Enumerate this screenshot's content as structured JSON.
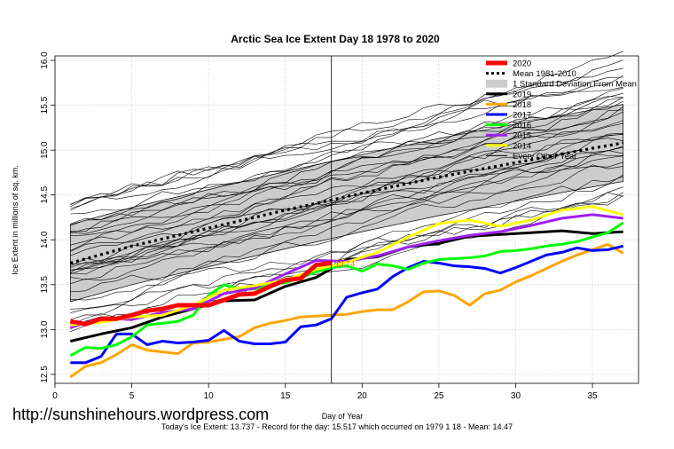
{
  "chart_data": {
    "type": "line",
    "title": "Arctic Sea Ice Extent Day 18 1978 to 2020",
    "xlabel": "Day of Year",
    "ylabel": "Ice Extent in millions of sq. km.",
    "xlim": [
      0,
      38
    ],
    "ylim": [
      12.4,
      16.05
    ],
    "x_ticks": [
      0,
      5,
      10,
      15,
      20,
      25,
      30,
      35
    ],
    "y_ticks": [
      12.5,
      13.0,
      13.5,
      14.0,
      14.5,
      15.0,
      15.5,
      16.0
    ],
    "grid": true,
    "legend_position": "top-right",
    "marker_day": 18,
    "end_label": "13.74",
    "legend": [
      {
        "label": "2020",
        "color": "#ff0000",
        "style": "solid",
        "width": 5
      },
      {
        "label": "Mean 1981-2010",
        "color": "#000000",
        "style": "dotted",
        "width": 3
      },
      {
        "label": "1 Standard Deviation From Mean",
        "color": "#cccccc",
        "style": "band",
        "width": 9
      },
      {
        "label": "2019",
        "color": "#000000",
        "style": "solid",
        "width": 3
      },
      {
        "label": "2018",
        "color": "#ffa500",
        "style": "solid",
        "width": 3
      },
      {
        "label": "2017",
        "color": "#0000ff",
        "style": "solid",
        "width": 3
      },
      {
        "label": "2016",
        "color": "#00ff00",
        "style": "solid",
        "width": 3
      },
      {
        "label": "2015",
        "color": "#a020f0",
        "style": "solid",
        "width": 3
      },
      {
        "label": "2014",
        "color": "#ffff00",
        "style": "solid",
        "width": 3
      },
      {
        "label": "Every Other Year",
        "color": "#000000",
        "style": "solid",
        "width": 1
      }
    ],
    "mean": {
      "x": [
        1,
        5,
        10,
        15,
        20,
        25,
        30,
        35,
        37
      ],
      "y": [
        13.74,
        13.93,
        14.13,
        14.33,
        14.52,
        14.7,
        14.86,
        15.02,
        15.08
      ]
    },
    "std_band": {
      "x": [
        1,
        5,
        10,
        15,
        20,
        25,
        30,
        35,
        37
      ],
      "upper": [
        14.17,
        14.36,
        14.56,
        14.76,
        14.95,
        15.13,
        15.29,
        15.45,
        15.51
      ],
      "lower": [
        13.31,
        13.5,
        13.7,
        13.9,
        14.09,
        14.27,
        14.43,
        14.59,
        14.65
      ]
    },
    "series": [
      {
        "name": "2020",
        "color": "#ff0000",
        "width": 5,
        "x": [
          1,
          2,
          3,
          4,
          5,
          6,
          7,
          8,
          9,
          10,
          11,
          12,
          13,
          14,
          15,
          16,
          17,
          18
        ],
        "y": [
          13.09,
          13.06,
          13.12,
          13.12,
          13.16,
          13.21,
          13.23,
          13.27,
          13.27,
          13.27,
          13.33,
          13.39,
          13.4,
          13.48,
          13.55,
          13.57,
          13.72,
          13.74
        ]
      },
      {
        "name": "2014",
        "color": "#ffff00",
        "width": 3,
        "x": [
          1,
          3,
          5,
          7,
          9,
          11,
          13,
          15,
          17,
          19,
          21,
          23,
          25,
          27,
          29,
          31,
          33,
          35,
          37
        ],
        "y": [
          13.05,
          13.08,
          13.14,
          13.16,
          13.27,
          13.44,
          13.49,
          13.55,
          13.67,
          13.75,
          13.86,
          14.03,
          14.18,
          14.22,
          14.15,
          14.22,
          14.33,
          14.37,
          14.28
        ]
      },
      {
        "name": "2015",
        "color": "#a020f0",
        "width": 3,
        "x": [
          1,
          3,
          5,
          7,
          9,
          11,
          13,
          15,
          17,
          19,
          21,
          23,
          25,
          27,
          29,
          31,
          33,
          35,
          37
        ],
        "y": [
          13.02,
          13.13,
          13.11,
          13.19,
          13.23,
          13.4,
          13.46,
          13.62,
          13.77,
          13.76,
          13.82,
          13.92,
          13.99,
          14.05,
          14.09,
          14.16,
          14.24,
          14.28,
          14.24
        ]
      },
      {
        "name": "2016",
        "color": "#00ff00",
        "width": 3,
        "x": [
          1,
          2,
          3,
          4,
          5,
          6,
          7,
          8,
          9,
          10,
          11,
          12,
          13,
          14,
          15,
          16,
          17,
          18,
          19,
          20,
          21,
          22,
          23,
          24,
          25,
          26,
          27,
          28,
          29,
          30,
          31,
          32,
          33,
          34,
          35,
          36,
          37
        ],
        "y": [
          12.71,
          12.8,
          12.79,
          12.83,
          12.92,
          13.05,
          13.07,
          13.09,
          13.16,
          13.38,
          13.5,
          13.45,
          13.45,
          13.51,
          13.52,
          13.58,
          13.64,
          13.69,
          13.71,
          13.65,
          13.73,
          13.71,
          13.67,
          13.74,
          13.78,
          13.79,
          13.8,
          13.82,
          13.87,
          13.88,
          13.9,
          13.93,
          13.95,
          13.98,
          14.03,
          14.08,
          14.19
        ]
      },
      {
        "name": "2017",
        "color": "#0000ff",
        "width": 3,
        "x": [
          1,
          2,
          3,
          4,
          5,
          6,
          7,
          8,
          9,
          10,
          11,
          12,
          13,
          14,
          15,
          16,
          17,
          18,
          19,
          20,
          21,
          22,
          23,
          24,
          25,
          26,
          27,
          28,
          29,
          30,
          31,
          32,
          33,
          34,
          35,
          36,
          37
        ],
        "y": [
          12.63,
          12.63,
          12.7,
          12.95,
          12.95,
          12.83,
          12.87,
          12.85,
          12.86,
          12.88,
          12.99,
          12.87,
          12.84,
          12.84,
          12.86,
          13.03,
          13.05,
          13.12,
          13.36,
          13.41,
          13.45,
          13.59,
          13.69,
          13.76,
          13.74,
          13.71,
          13.7,
          13.68,
          13.63,
          13.69,
          13.76,
          13.83,
          13.86,
          13.91,
          13.88,
          13.89,
          13.93
        ]
      },
      {
        "name": "2018",
        "color": "#ffa500",
        "width": 3,
        "x": [
          1,
          2,
          3,
          4,
          5,
          6,
          7,
          8,
          9,
          10,
          11,
          12,
          13,
          14,
          15,
          16,
          17,
          18,
          19,
          20,
          21,
          22,
          23,
          24,
          25,
          26,
          27,
          28,
          29,
          30,
          31,
          32,
          33,
          34,
          35,
          36,
          37
        ],
        "y": [
          12.47,
          12.59,
          12.63,
          12.72,
          12.83,
          12.77,
          12.75,
          12.73,
          12.85,
          12.86,
          12.89,
          12.92,
          13.02,
          13.07,
          13.1,
          13.14,
          13.15,
          13.16,
          13.17,
          13.2,
          13.22,
          13.22,
          13.31,
          13.42,
          13.43,
          13.38,
          13.27,
          13.4,
          13.44,
          13.53,
          13.6,
          13.68,
          13.76,
          13.83,
          13.89,
          13.95,
          13.85
        ]
      },
      {
        "name": "2019",
        "color": "#000000",
        "width": 3,
        "x": [
          1,
          3,
          5,
          7,
          9,
          11,
          13,
          15,
          17,
          19,
          21,
          23,
          25,
          27,
          29,
          31,
          33,
          35,
          37
        ],
        "y": [
          12.87,
          12.95,
          13.02,
          13.14,
          13.23,
          13.32,
          13.33,
          13.48,
          13.58,
          13.78,
          13.81,
          13.92,
          13.96,
          14.04,
          14.06,
          14.08,
          14.1,
          14.07,
          14.09
        ]
      }
    ],
    "other_years_count": 34
  },
  "watermark": "http://sunshinehours.wordpress.com",
  "footer": "Today's Ice Extent: 13.737  - Record for the day: 15.517 which occurred on 1979 1 18  - Mean: 14.47"
}
